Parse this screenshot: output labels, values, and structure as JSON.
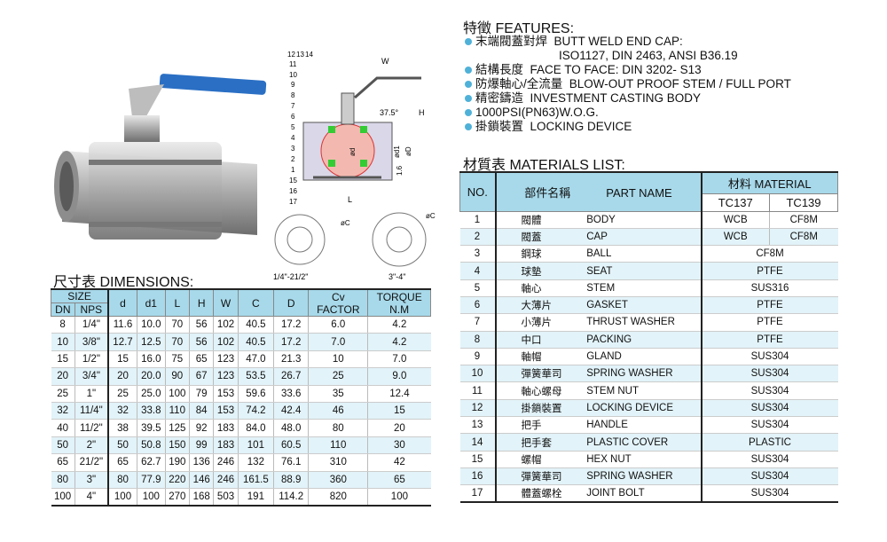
{
  "features": {
    "title": "特徵  FEATURES:",
    "items": [
      {
        "zh": "末端閥蓋對焊",
        "en": "BUTT WELD END CAP:",
        "en2": "ISO1127, DIN 2463, ANSI B36.19"
      },
      {
        "zh": "結構長度",
        "en": "FACE TO FACE: DIN 3202- S13"
      },
      {
        "zh": "防爆軸心/全流量",
        "en": "BLOW-OUT PROOF STEM / FULL PORT"
      },
      {
        "zh": "精密鑄造",
        "en": "INVESTMENT CASTING BODY"
      },
      {
        "zh": "",
        "en": "1000PSI(PN63)W.O.G."
      },
      {
        "zh": "掛鎖裝置",
        "en": "LOCKING DEVICE"
      }
    ]
  },
  "colors": {
    "header": "#a7d9ea",
    "alt_row": "#e2f3f9",
    "bullet": "#4fb1d8",
    "handle": "#2a6fc4"
  },
  "diagram": {
    "callouts": [
      "12",
      "13",
      "14",
      "11",
      "10",
      "9",
      "8",
      "7",
      "6",
      "5",
      "4",
      "3",
      "2",
      "1",
      "15",
      "16",
      "17"
    ],
    "dims": {
      "w": "W",
      "h": "H",
      "l": "L",
      "angle": "37.5°",
      "d": "ød",
      "d1": "ød1",
      "D": "øD",
      "t": "1.6",
      "c": "øC"
    },
    "flange_small": "1/4\"-21/2\"",
    "flange_large": "3\"-4\""
  },
  "dimensions": {
    "title": "尺寸表  DIMENSIONS:",
    "headers": {
      "size": "SIZE",
      "dn": "DN",
      "nps": "NPS",
      "cols": [
        "d",
        "d1",
        "L",
        "H",
        "W",
        "C",
        "D"
      ],
      "cv1": "Cv",
      "cv2": "FACTOR",
      "tq1": "TORQUE",
      "tq2": "N.M"
    },
    "rows": [
      [
        "8",
        "1/4\"",
        "11.6",
        "10.0",
        "70",
        "56",
        "102",
        "40.5",
        "17.2",
        "6.0",
        "4.2"
      ],
      [
        "10",
        "3/8\"",
        "12.7",
        "12.5",
        "70",
        "56",
        "102",
        "40.5",
        "17.2",
        "7.0",
        "4.2"
      ],
      [
        "15",
        "1/2\"",
        "15",
        "16.0",
        "75",
        "65",
        "123",
        "47.0",
        "21.3",
        "10",
        "7.0"
      ],
      [
        "20",
        "3/4\"",
        "20",
        "20.0",
        "90",
        "67",
        "123",
        "53.5",
        "26.7",
        "25",
        "9.0"
      ],
      [
        "25",
        "1\"",
        "25",
        "25.0",
        "100",
        "79",
        "153",
        "59.6",
        "33.6",
        "35",
        "12.4"
      ],
      [
        "32",
        "11/4\"",
        "32",
        "33.8",
        "110",
        "84",
        "153",
        "74.2",
        "42.4",
        "46",
        "15"
      ],
      [
        "40",
        "11/2\"",
        "38",
        "39.5",
        "125",
        "92",
        "183",
        "84.0",
        "48.0",
        "80",
        "20"
      ],
      [
        "50",
        "2\"",
        "50",
        "50.8",
        "150",
        "99",
        "183",
        "101",
        "60.5",
        "110",
        "30"
      ],
      [
        "65",
        "21/2\"",
        "65",
        "62.7",
        "190",
        "136",
        "246",
        "132",
        "76.1",
        "310",
        "42"
      ],
      [
        "80",
        "3\"",
        "80",
        "77.9",
        "220",
        "146",
        "246",
        "161.5",
        "88.9",
        "360",
        "65"
      ],
      [
        "100",
        "4\"",
        "100",
        "100",
        "270",
        "168",
        "503",
        "191",
        "114.2",
        "820",
        "100"
      ]
    ]
  },
  "materials": {
    "title": "材質表  MATERIALS LIST:",
    "headers": {
      "no": "NO.",
      "part_zh": "部件名稱",
      "part_en": "PART NAME",
      "material": "材料  MATERIAL",
      "tc137": "TC137",
      "tc139": "TC139"
    },
    "rows": [
      [
        "1",
        "閥體",
        "BODY",
        "WCB",
        "CF8M"
      ],
      [
        "2",
        "閥蓋",
        "CAP",
        "WCB",
        "CF8M"
      ],
      [
        "3",
        "鋼球",
        "BALL",
        "CF8M"
      ],
      [
        "4",
        "球墊",
        "SEAT",
        "PTFE"
      ],
      [
        "5",
        "軸心",
        "STEM",
        "SUS316"
      ],
      [
        "6",
        "大薄片",
        "GASKET",
        "PTFE"
      ],
      [
        "7",
        "小薄片",
        "THRUST WASHER",
        "PTFE"
      ],
      [
        "8",
        "中口",
        "PACKING",
        "PTFE"
      ],
      [
        "9",
        "軸帽",
        "GLAND",
        "SUS304"
      ],
      [
        "10",
        "彈簧華司",
        "SPRING WASHER",
        "SUS304"
      ],
      [
        "11",
        "軸心螺母",
        "STEM NUT",
        "SUS304"
      ],
      [
        "12",
        "掛鎖裝置",
        "LOCKING DEVICE",
        "SUS304"
      ],
      [
        "13",
        "把手",
        "HANDLE",
        "SUS304"
      ],
      [
        "14",
        "把手套",
        "PLASTIC COVER",
        "PLASTIC"
      ],
      [
        "15",
        "螺帽",
        "HEX NUT",
        "SUS304"
      ],
      [
        "16",
        "彈簧華司",
        "SPRING WASHER",
        "SUS304"
      ],
      [
        "17",
        "體蓋螺栓",
        "JOINT BOLT",
        "SUS304"
      ]
    ]
  }
}
